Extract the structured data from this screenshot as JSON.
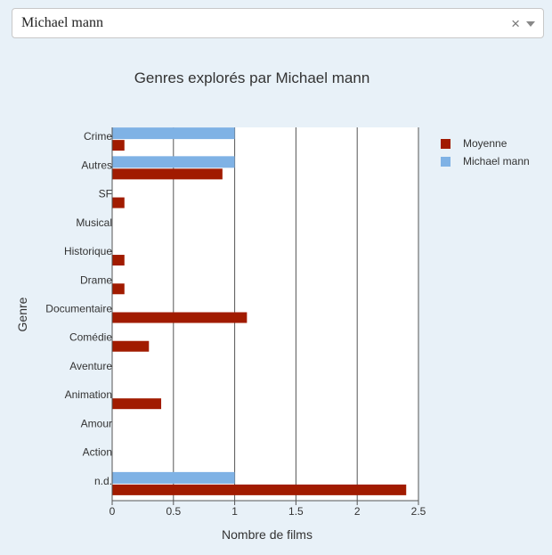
{
  "filter": {
    "selected_value": "Michael mann",
    "clear_icon": "×"
  },
  "colors": {
    "moyenne": "#a11b00",
    "director": "#7fb2e5"
  },
  "chart_data": {
    "type": "bar",
    "orientation": "horizontal",
    "title": "Genres explorés par Michael mann",
    "xlabel": "Nombre de films",
    "ylabel": "Genre",
    "xlim": [
      0,
      2.5
    ],
    "x_ticks": [
      "0",
      "0.5",
      "1",
      "1.5",
      "2",
      "2.5"
    ],
    "grid": true,
    "legend_position": "top-right",
    "categories": [
      "Crime",
      "Autres",
      "SF",
      "Musical",
      "Historique",
      "Drame",
      "Documentaire",
      "Comédie",
      "Aventure",
      "Animation",
      "Amour",
      "Action",
      "n.d."
    ],
    "series": [
      {
        "name": "Moyenne",
        "color": "#a11b00",
        "values": [
          0.1,
          0.9,
          0.1,
          0,
          0.1,
          0.1,
          1.1,
          0.3,
          0,
          0.4,
          0,
          0,
          2.4
        ]
      },
      {
        "name": "Michael mann",
        "color": "#7fb2e5",
        "values": [
          1,
          1,
          0,
          0,
          0,
          0,
          0,
          0,
          0,
          0,
          0,
          0,
          1
        ]
      }
    ]
  }
}
